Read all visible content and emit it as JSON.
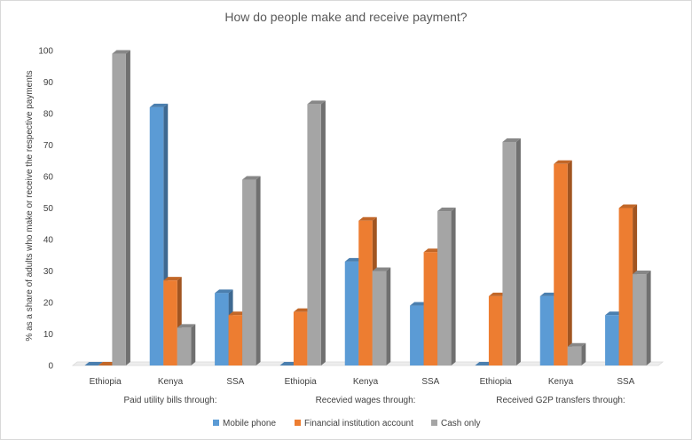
{
  "chart_data": {
    "type": "bar",
    "title": "How do people make and receive payment?",
    "ylabel": "% as a share of adults who make or receive the respective payments",
    "xlabel": "",
    "ylim": [
      0,
      100
    ],
    "yticks": [
      0,
      10,
      20,
      30,
      40,
      50,
      60,
      70,
      80,
      90,
      100
    ],
    "grid": false,
    "legend_position": "bottom",
    "style": "3d-columns",
    "groups": [
      "Paid utility bills through:",
      "Recevied wages through:",
      "Received G2P transfers through:"
    ],
    "categories": [
      "Ethiopia",
      "Kenya",
      "SSA",
      "Ethiopia",
      "Kenya",
      "SSA",
      "Ethiopia",
      "Kenya",
      "SSA"
    ],
    "series": [
      {
        "name": "Mobile phone",
        "color": "#5b9bd5",
        "values": [
          0,
          82,
          23,
          0,
          33,
          19,
          0,
          22,
          16
        ]
      },
      {
        "name": "Financial institution account",
        "color": "#ed7d31",
        "values": [
          0,
          27,
          16,
          17,
          46,
          36,
          22,
          64,
          50
        ]
      },
      {
        "name": "Cash only",
        "color": "#a5a5a5",
        "values": [
          99,
          12,
          59,
          83,
          30,
          49,
          71,
          6,
          29
        ]
      }
    ]
  }
}
